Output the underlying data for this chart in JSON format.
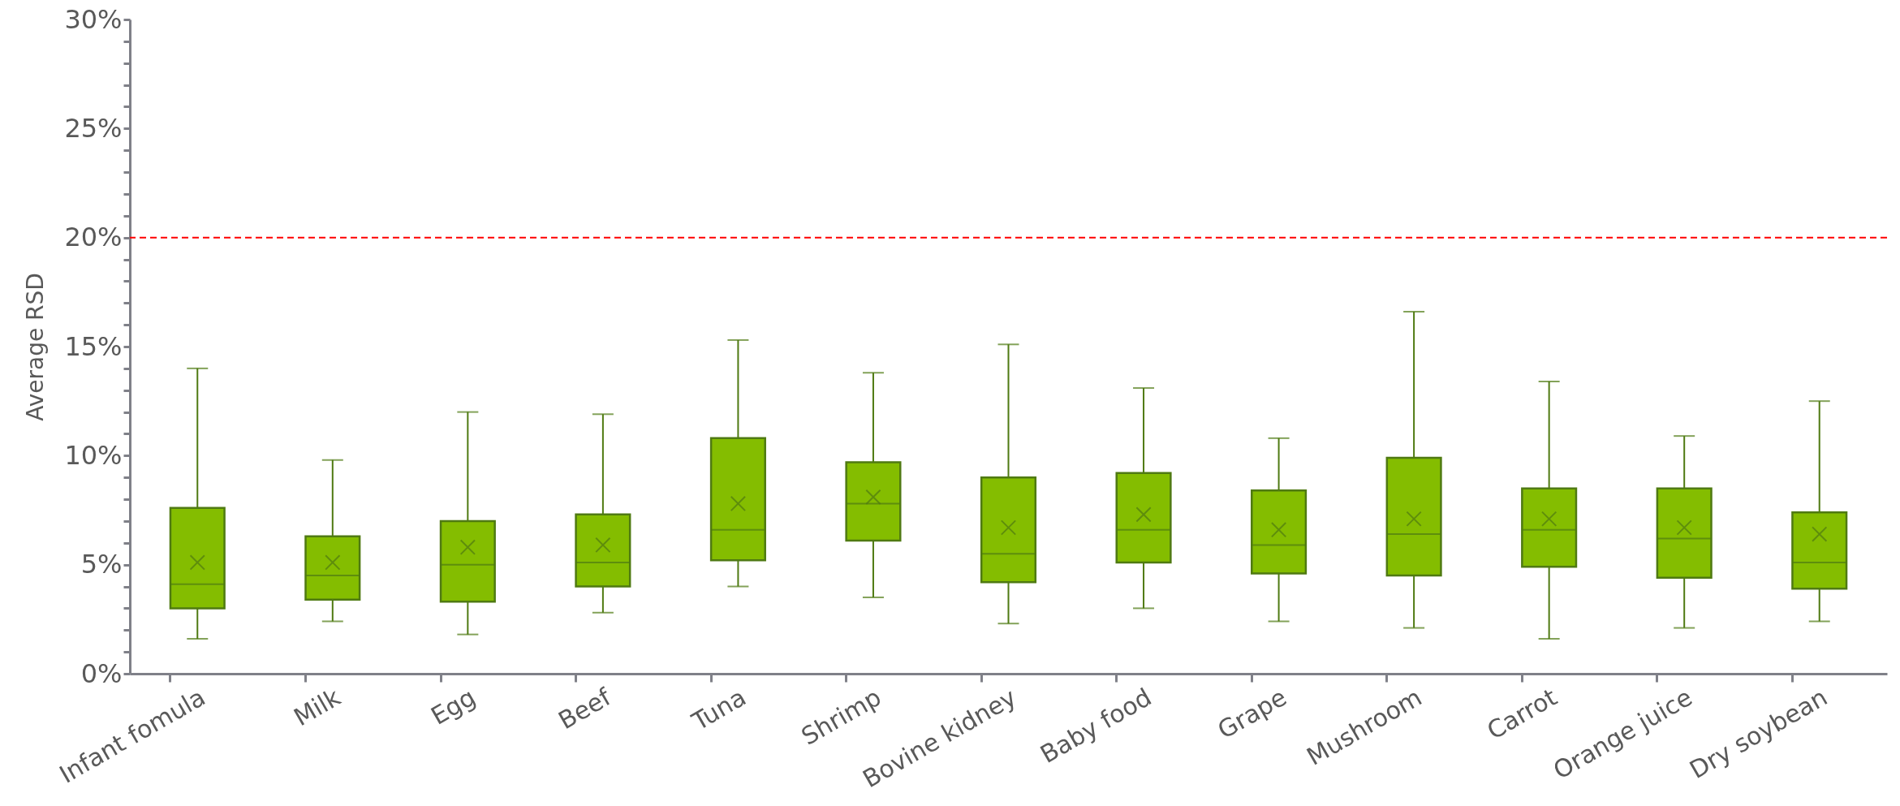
{
  "chart_data": {
    "type": "box",
    "ylabel": "Average RSD",
    "color": "#84bd00",
    "categories": [
      "Infant fomula",
      "Milk",
      "Egg",
      "Beef",
      "Tuna",
      "Shrimp",
      "Bovine kidney",
      "Baby food",
      "Grape",
      "Mushroom",
      "Carrot",
      "Orange juice",
      "Dry soybean"
    ],
    "boxes": [
      {
        "low": 1.6,
        "q1": 3.0,
        "median": 4.1,
        "q3": 7.6,
        "high": 14.0,
        "mean": 5.1
      },
      {
        "low": 2.4,
        "q1": 3.4,
        "median": 4.5,
        "q3": 6.3,
        "high": 9.8,
        "mean": 5.1
      },
      {
        "low": 1.8,
        "q1": 3.3,
        "median": 5.0,
        "q3": 7.0,
        "high": 12.0,
        "mean": 5.8
      },
      {
        "low": 2.8,
        "q1": 4.0,
        "median": 5.1,
        "q3": 7.3,
        "high": 11.9,
        "mean": 5.9
      },
      {
        "low": 4.0,
        "q1": 5.2,
        "median": 6.6,
        "q3": 10.8,
        "high": 15.3,
        "mean": 7.8
      },
      {
        "low": 3.5,
        "q1": 6.1,
        "median": 7.8,
        "q3": 9.7,
        "high": 13.8,
        "mean": 8.1
      },
      {
        "low": 2.3,
        "q1": 4.2,
        "median": 5.5,
        "q3": 9.0,
        "high": 15.1,
        "mean": 6.7
      },
      {
        "low": 3.0,
        "q1": 5.1,
        "median": 6.6,
        "q3": 9.2,
        "high": 13.1,
        "mean": 7.3
      },
      {
        "low": 2.4,
        "q1": 4.6,
        "median": 5.9,
        "q3": 8.4,
        "high": 10.8,
        "mean": 6.6
      },
      {
        "low": 2.1,
        "q1": 4.5,
        "median": 6.4,
        "q3": 9.9,
        "high": 16.6,
        "mean": 7.1
      },
      {
        "low": 1.6,
        "q1": 4.9,
        "median": 6.6,
        "q3": 8.5,
        "high": 13.4,
        "mean": 7.1
      },
      {
        "low": 2.1,
        "q1": 4.4,
        "median": 6.2,
        "q3": 8.5,
        "high": 10.9,
        "mean": 6.7
      },
      {
        "low": 2.4,
        "q1": 3.9,
        "median": 5.1,
        "q3": 7.4,
        "high": 12.5,
        "mean": 6.4
      }
    ],
    "ylim": [
      0,
      30
    ],
    "yticks": [
      {
        "value": 0,
        "label": "0%"
      },
      {
        "value": 1,
        "label": null
      },
      {
        "value": 2,
        "label": null
      },
      {
        "value": 3,
        "label": null
      },
      {
        "value": 4,
        "label": null
      },
      {
        "value": 5,
        "label": "5%"
      },
      {
        "value": 6,
        "label": null
      },
      {
        "value": 7,
        "label": null
      },
      {
        "value": 8,
        "label": null
      },
      {
        "value": 9,
        "label": null
      },
      {
        "value": 10,
        "label": "10%"
      },
      {
        "value": 11,
        "label": null
      },
      {
        "value": 12,
        "label": null
      },
      {
        "value": 13,
        "label": null
      },
      {
        "value": 14,
        "label": null
      },
      {
        "value": 15,
        "label": "15%"
      },
      {
        "value": 16,
        "label": null
      },
      {
        "value": 17,
        "label": null
      },
      {
        "value": 18,
        "label": null
      },
      {
        "value": 19,
        "label": null
      },
      {
        "value": 20,
        "label": "20%"
      },
      {
        "value": 21,
        "label": null
      },
      {
        "value": 22,
        "label": null
      },
      {
        "value": 23,
        "label": null
      },
      {
        "value": 24,
        "label": null
      },
      {
        "value": 25,
        "label": "25%"
      },
      {
        "value": 26,
        "label": null
      },
      {
        "value": 27,
        "label": null
      },
      {
        "value": 28,
        "label": null
      },
      {
        "value": 29,
        "label": null
      },
      {
        "value": 30,
        "label": "30%"
      }
    ],
    "ref_lines": [
      {
        "axis": "y",
        "value": 20,
        "color": "#ff0000",
        "line_style": "dashed"
      }
    ],
    "grid": false
  }
}
